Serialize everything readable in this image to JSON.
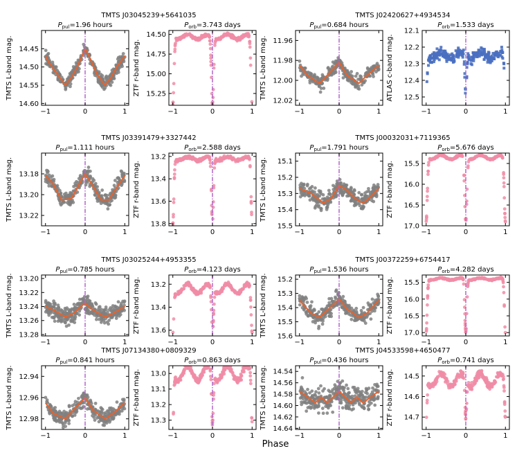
{
  "figure": {
    "xlabel": "Phase"
  },
  "style": {
    "point_gray": "#808080",
    "fit_orange": "#e8622c",
    "marker_purple": "#b267c9",
    "ztf_pink": "#f08ca6",
    "atlas_blue": "#4a6fc0"
  },
  "chart_data": [
    {
      "type": "scatter",
      "star": "TMTS J03045239+5641035",
      "panel": "pulsation",
      "title_sym": "P",
      "title_sub": "pul",
      "title_rest": "=1.96 hours",
      "ylabel": "TMTS L-band mag.",
      "yticks": [
        "14.45",
        "14.50",
        "14.55",
        "14.60"
      ],
      "xticks": [
        "−1",
        "0",
        "1"
      ],
      "xlim": [
        -1.1,
        1.1
      ],
      "ylim": [
        14.605,
        14.4
      ],
      "inverted_y": true,
      "x_marker": 0,
      "fit": {
        "x": [
          -1,
          -0.9,
          -0.7,
          -0.5,
          -0.35,
          -0.2,
          0,
          0.1,
          0.3,
          0.5,
          0.65,
          0.8,
          1
        ],
        "y": [
          14.47,
          14.49,
          14.52,
          14.55,
          14.53,
          14.5,
          14.45,
          14.47,
          14.52,
          14.55,
          14.53,
          14.5,
          14.47
        ]
      },
      "scatter": {
        "n": 320,
        "spread": 0.015,
        "color": "point_gray"
      }
    },
    {
      "type": "scatter",
      "panel": "orbital",
      "title_sym": "P",
      "title_sub": "orb",
      "title_rest": "=3.743 days",
      "ylabel": "ZTF r-band mag.",
      "yticks": [
        "14.50",
        "14.75",
        "15.00",
        "15.25"
      ],
      "xticks": [
        "−1",
        "0",
        "1"
      ],
      "xlim": [
        -1.1,
        1.1
      ],
      "ylim": [
        15.4,
        14.45
      ],
      "inverted_y": true,
      "x_marker": 0,
      "eclipse": {
        "base": 14.53,
        "depth": 0.85,
        "width": 0.04,
        "wave": 0.03
      },
      "scatter": {
        "n": 300,
        "spread": 0.03,
        "color": "ztf_pink"
      }
    },
    {
      "type": "scatter",
      "star": "TMTS J02420627+4934534",
      "panel": "pulsation",
      "title_sym": "P",
      "title_sub": "pul",
      "title_rest": "=0.684 hours",
      "ylabel": "TMTS L-band mag.",
      "yticks": [
        "11.96",
        "11.98",
        "12.00",
        "12.02"
      ],
      "xticks": [
        "−1",
        "0",
        "1"
      ],
      "xlim": [
        -1.1,
        1.1
      ],
      "ylim": [
        12.025,
        11.95
      ],
      "inverted_y": true,
      "x_marker": 0,
      "fit": {
        "x": [
          -1,
          -0.8,
          -0.5,
          -0.3,
          0,
          0.2,
          0.5,
          0.7,
          1
        ],
        "y": [
          11.985,
          11.995,
          12.003,
          11.995,
          11.982,
          11.995,
          12.003,
          11.995,
          11.985
        ]
      },
      "scatter": {
        "n": 300,
        "spread": 0.006,
        "color": "point_gray"
      }
    },
    {
      "type": "scatter",
      "panel": "orbital",
      "title_sym": "P",
      "title_sub": "orb",
      "title_rest": "=1.533 days",
      "ylabel": "ATLAS c-band mag.",
      "yticks": [
        "12.1",
        "12.2",
        "12.3",
        "12.4",
        "12.5"
      ],
      "xticks": [
        "−1",
        "0",
        "1"
      ],
      "xlim": [
        -1.1,
        1.1
      ],
      "ylim": [
        12.55,
        12.1
      ],
      "inverted_y": true,
      "x_marker": 0,
      "eclipse": {
        "base": 12.25,
        "depth": 0.25,
        "width": 0.03,
        "wave": 0.02
      },
      "scatter": {
        "n": 260,
        "spread": 0.05,
        "color": "atlas_blue",
        "square": true
      }
    },
    {
      "type": "scatter",
      "star": "TMTS J03391479+3327442",
      "panel": "pulsation",
      "title_sym": "P",
      "title_sub": "pul",
      "title_rest": "=1.111 hours",
      "ylabel": "TMTS L-band mag.",
      "yticks": [
        "13.18",
        "13.20",
        "13.22"
      ],
      "xticks": [
        "−1",
        "0",
        "1"
      ],
      "xlim": [
        -1.1,
        1.1
      ],
      "ylim": [
        13.23,
        13.16
      ],
      "inverted_y": true,
      "x_marker": 0,
      "fit": {
        "x": [
          -1,
          -0.8,
          -0.6,
          -0.35,
          -0.15,
          0,
          0.2,
          0.4,
          0.6,
          0.85,
          1
        ],
        "y": [
          13.182,
          13.19,
          13.205,
          13.204,
          13.19,
          13.18,
          13.192,
          13.205,
          13.205,
          13.19,
          13.182
        ]
      },
      "scatter": {
        "n": 300,
        "spread": 0.008,
        "color": "point_gray"
      }
    },
    {
      "type": "scatter",
      "panel": "orbital",
      "title_sym": "P",
      "title_sub": "orb",
      "title_rest": "=2.588 days",
      "ylabel": "ZTF r-band mag.",
      "yticks": [
        "13.2",
        "13.4",
        "13.6",
        "13.8"
      ],
      "xticks": [
        "−1",
        "0",
        "1"
      ],
      "xlim": [
        -1.1,
        1.1
      ],
      "ylim": [
        13.82,
        13.17
      ],
      "inverted_y": true,
      "x_marker": 0,
      "eclipse": {
        "base": 13.22,
        "depth": 0.58,
        "width": 0.035,
        "wave": 0.015
      },
      "scatter": {
        "n": 300,
        "spread": 0.02,
        "color": "ztf_pink"
      }
    },
    {
      "type": "scatter",
      "star": "TMTS J00032031+7119365",
      "panel": "pulsation",
      "title_sym": "P",
      "title_sub": "pul",
      "title_rest": "=1.791 hours",
      "ylabel": "TMTS L-band mag.",
      "yticks": [
        "15.1",
        "15.2",
        "15.3",
        "15.4",
        "15.5"
      ],
      "xticks": [
        "−1",
        "0",
        "1"
      ],
      "xlim": [
        -1.1,
        1.1
      ],
      "ylim": [
        15.5,
        15.05
      ],
      "inverted_y": true,
      "x_marker": 0,
      "fit": {
        "x": [
          -1,
          -0.7,
          -0.4,
          -0.2,
          0,
          0.2,
          0.4,
          0.6,
          0.8,
          1
        ],
        "y": [
          15.27,
          15.3,
          15.36,
          15.33,
          15.25,
          15.28,
          15.33,
          15.36,
          15.32,
          15.27
        ]
      },
      "scatter": {
        "n": 320,
        "spread": 0.05,
        "color": "point_gray"
      }
    },
    {
      "type": "scatter",
      "panel": "orbital",
      "title_sym": "P",
      "title_sub": "orb",
      "title_rest": "=5.676 days",
      "ylabel": "ZTF r-band mag.",
      "yticks": [
        "15.5",
        "16.0",
        "16.5",
        "17.0"
      ],
      "xticks": [
        "−1",
        "0",
        "1"
      ],
      "xlim": [
        -1.1,
        1.1
      ],
      "ylim": [
        17.0,
        15.25
      ],
      "inverted_y": true,
      "x_marker": 0,
      "eclipse": {
        "base": 15.35,
        "depth": 1.55,
        "width": 0.04,
        "wave": 0.05
      },
      "scatter": {
        "n": 300,
        "spread": 0.03,
        "color": "ztf_pink"
      }
    },
    {
      "type": "scatter",
      "star": "TMTS J03025244+4953355",
      "panel": "pulsation",
      "title_sym": "P",
      "title_sub": "pul",
      "title_rest": "=0.785 hours",
      "ylabel": "TMTS L-band mag.",
      "yticks": [
        "13.20",
        "13.22",
        "13.24",
        "13.26",
        "13.28"
      ],
      "xticks": [
        "−1",
        "0",
        "1"
      ],
      "xlim": [
        -1.1,
        1.1
      ],
      "ylim": [
        13.282,
        13.195
      ],
      "inverted_y": true,
      "x_marker": 0,
      "fit": {
        "x": [
          -1,
          -0.8,
          -0.5,
          -0.3,
          0,
          0.2,
          0.5,
          0.7,
          1
        ],
        "y": [
          13.24,
          13.245,
          13.255,
          13.25,
          13.235,
          13.245,
          13.255,
          13.25,
          13.24
        ]
      },
      "scatter": {
        "n": 360,
        "spread": 0.011,
        "color": "point_gray"
      }
    },
    {
      "type": "scatter",
      "panel": "orbital",
      "title_sym": "P",
      "title_sub": "orb",
      "title_rest": "=4.123 days",
      "ylabel": "ZTF r-band mag.",
      "yticks": [
        "13.2",
        "13.4",
        "13.6"
      ],
      "xticks": [
        "−1",
        "0",
        "1"
      ],
      "xlim": [
        -1.1,
        1.1
      ],
      "ylim": [
        13.65,
        13.12
      ],
      "inverted_y": true,
      "x_marker": 0,
      "eclipse": {
        "base": 13.24,
        "depth": 0.38,
        "width": 0.035,
        "wave": 0.04
      },
      "scatter": {
        "n": 300,
        "spread": 0.025,
        "color": "ztf_pink"
      }
    },
    {
      "type": "scatter",
      "star": "TMTS J00372259+6754417",
      "panel": "pulsation",
      "title_sym": "P",
      "title_sub": "pul",
      "title_rest": "=1.536 hours",
      "ylabel": "TMTS L-band mag.",
      "yticks": [
        "15.2",
        "15.3",
        "15.4",
        "15.5",
        "15.6"
      ],
      "xticks": [
        "−1",
        "0",
        "1"
      ],
      "xlim": [
        -1.1,
        1.1
      ],
      "ylim": [
        15.6,
        15.17
      ],
      "inverted_y": true,
      "x_marker": 0,
      "fit": {
        "x": [
          -1,
          -0.7,
          -0.5,
          -0.3,
          0,
          0.2,
          0.5,
          0.7,
          1
        ],
        "y": [
          15.35,
          15.44,
          15.47,
          15.42,
          15.34,
          15.41,
          15.47,
          15.44,
          15.35
        ]
      },
      "scatter": {
        "n": 300,
        "spread": 0.055,
        "color": "point_gray"
      }
    },
    {
      "type": "scatter",
      "panel": "orbital",
      "title_sym": "P",
      "title_sub": "orb",
      "title_rest": "=4.282 days",
      "ylabel": "ZTF r-band mag.",
      "yticks": [
        "15.5",
        "16.0",
        "16.5",
        "17.0"
      ],
      "xticks": [
        "−1",
        "0",
        "1"
      ],
      "xlim": [
        -1.1,
        1.1
      ],
      "ylim": [
        17.1,
        15.28
      ],
      "inverted_y": true,
      "x_marker": 0,
      "eclipse": {
        "base": 15.4,
        "depth": 1.6,
        "width": 0.035,
        "wave": 0.03
      },
      "scatter": {
        "n": 300,
        "spread": 0.03,
        "color": "ztf_pink"
      }
    },
    {
      "type": "scatter",
      "star": "TMTS J07134380+0809329",
      "panel": "pulsation",
      "title_sym": "P",
      "title_sub": "pul",
      "title_rest": "=0.841 hours",
      "ylabel": "TMTS L-band mag.",
      "yticks": [
        "12.94",
        "12.96",
        "12.98"
      ],
      "xticks": [
        "−1",
        "0",
        "1"
      ],
      "xlim": [
        -1.1,
        1.1
      ],
      "ylim": [
        12.99,
        12.93
      ],
      "inverted_y": true,
      "x_marker": 0,
      "fit": {
        "x": [
          -1,
          -0.8,
          -0.5,
          -0.3,
          0,
          0.2,
          0.5,
          0.7,
          1
        ],
        "y": [
          12.965,
          12.975,
          12.98,
          12.972,
          12.96,
          12.972,
          12.98,
          12.975,
          12.965
        ]
      },
      "scatter": {
        "n": 300,
        "spread": 0.007,
        "color": "point_gray"
      }
    },
    {
      "type": "scatter",
      "panel": "orbital",
      "title_sym": "P",
      "title_sub": "orb",
      "title_rest": "=0.863 days",
      "ylabel": "ZTF r-band mag.",
      "yticks": [
        "13.0",
        "13.1",
        "13.2",
        "13.3"
      ],
      "xticks": [
        "−1",
        "0",
        "1"
      ],
      "xlim": [
        -1.1,
        1.1
      ],
      "ylim": [
        13.36,
        12.95
      ],
      "inverted_y": true,
      "x_marker": 0,
      "eclipse": {
        "base": 13.0,
        "depth": 0.32,
        "width": 0.03,
        "wave": 0.05
      },
      "scatter": {
        "n": 280,
        "spread": 0.03,
        "color": "ztf_pink"
      }
    },
    {
      "type": "scatter",
      "star": "TMTS J04533598+4650477",
      "panel": "pulsation",
      "title_sym": "P",
      "title_sub": "pul",
      "title_rest": "=0.436 hours",
      "ylabel": "TMTS L-band mag.",
      "yticks": [
        "14.54",
        "14.56",
        "14.58",
        "14.60",
        "14.62",
        "14.64"
      ],
      "xticks": [
        "−1",
        "0",
        "1"
      ],
      "xlim": [
        -1.1,
        1.1
      ],
      "ylim": [
        14.642,
        14.53
      ],
      "inverted_y": true,
      "x_marker": 0,
      "fit": {
        "x": [
          -1,
          -0.8,
          -0.6,
          -0.45,
          -0.3,
          -0.15,
          0,
          0.15,
          0.3,
          0.45,
          0.6,
          0.8,
          1
        ],
        "y": [
          14.575,
          14.585,
          14.595,
          14.585,
          14.595,
          14.585,
          14.575,
          14.585,
          14.595,
          14.585,
          14.595,
          14.585,
          14.575
        ]
      },
      "scatter": {
        "n": 320,
        "spread": 0.02,
        "color": "point_gray"
      }
    },
    {
      "type": "scatter",
      "panel": "orbital",
      "title_sym": "P",
      "title_sub": "orb",
      "title_rest": "=0.741 days",
      "ylabel": "ZTF r-band mag.",
      "yticks": [
        "14.5",
        "14.6",
        "14.7"
      ],
      "xticks": [
        "−1",
        "0",
        "1"
      ],
      "xlim": [
        -1.1,
        1.1
      ],
      "ylim": [
        14.76,
        14.45
      ],
      "inverted_y": true,
      "x_marker": 0,
      "eclipse": {
        "base": 14.52,
        "depth": 0.18,
        "width": 0.03,
        "wave": 0.03
      },
      "scatter": {
        "n": 300,
        "spread": 0.025,
        "color": "ztf_pink"
      }
    }
  ]
}
